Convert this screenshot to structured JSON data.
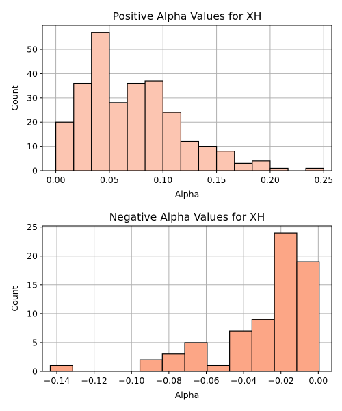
{
  "chart_data": [
    {
      "type": "histogram",
      "title": "Positive Alpha Values for XH",
      "xlabel": "Alpha",
      "ylabel": "Count",
      "color": "#fcc5b1",
      "edgecolor": "#000000",
      "grid": true,
      "xlim": [
        -0.0125,
        0.2575
      ],
      "ylim": [
        0,
        59.9
      ],
      "xticks": [
        0.0,
        0.05,
        0.1,
        0.15,
        0.2,
        0.25
      ],
      "xtick_labels": [
        "0.00",
        "0.05",
        "0.10",
        "0.15",
        "0.20",
        "0.25"
      ],
      "yticks": [
        0,
        10,
        20,
        30,
        40,
        50
      ],
      "ytick_labels": [
        "0",
        "10",
        "20",
        "30",
        "40",
        "50"
      ],
      "bin_edges": [
        0.0,
        0.0167,
        0.0333,
        0.05,
        0.0667,
        0.0833,
        0.1,
        0.1167,
        0.1333,
        0.15,
        0.1667,
        0.1833,
        0.2,
        0.2167,
        0.2333,
        0.25
      ],
      "counts": [
        20,
        36,
        57,
        28,
        36,
        37,
        24,
        12,
        10,
        8,
        3,
        4,
        1,
        0,
        1
      ]
    },
    {
      "type": "histogram",
      "title": "Negative Alpha Values for XH",
      "xlabel": "Alpha",
      "ylabel": "Count",
      "color": "#fca686",
      "edgecolor": "#000000",
      "grid": true,
      "xlim": [
        -0.1477,
        0.0072
      ],
      "ylim": [
        0,
        25.2
      ],
      "xticks": [
        -0.14,
        -0.12,
        -0.1,
        -0.08,
        -0.06,
        -0.04,
        -0.02,
        0.0
      ],
      "xtick_labels": [
        "−0.14",
        "−0.12",
        "−0.10",
        "−0.08",
        "−0.06",
        "−0.04",
        "−0.02",
        "0.00"
      ],
      "yticks": [
        0,
        5,
        10,
        15,
        20,
        25
      ],
      "ytick_labels": [
        "0",
        "5",
        "10",
        "15",
        "20",
        "25"
      ],
      "bin_edges": [
        -0.1435,
        -0.1315,
        -0.1195,
        -0.1075,
        -0.0955,
        -0.0835,
        -0.0715,
        -0.0595,
        -0.0475,
        -0.0355,
        -0.0235,
        -0.0115,
        0.0005
      ],
      "counts": [
        1,
        0,
        0,
        0,
        2,
        3,
        5,
        1,
        7,
        9,
        24,
        19
      ]
    }
  ]
}
